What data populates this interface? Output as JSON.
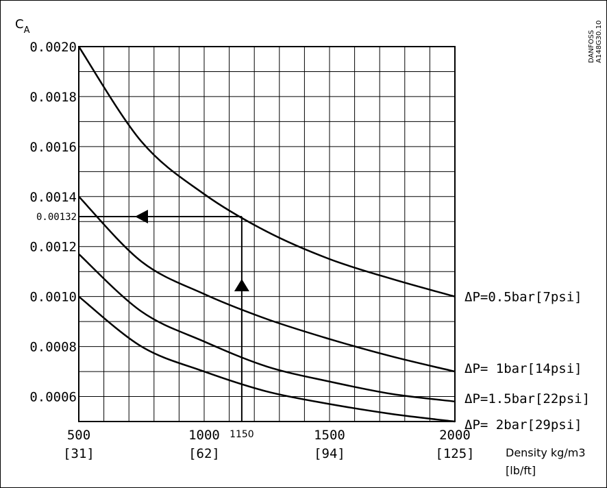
{
  "chart_data": {
    "type": "line",
    "ylabel_main": "C",
    "ylabel_sub": "A",
    "x": [
      500,
      750,
      1000,
      1250,
      1500,
      1750,
      2000
    ],
    "xlim": [
      500,
      2000
    ],
    "ylim": [
      0.0005,
      0.002
    ],
    "grid": true,
    "y_ticks": [
      "0.0006",
      "0.0008",
      "0.0010",
      "0.0012",
      "0.0014",
      "0.0016",
      "0.0018",
      "0.0020"
    ],
    "x_ticks": [
      {
        "value": 500,
        "label": "500",
        "imperial": "[31]"
      },
      {
        "value": 1000,
        "label": "1000",
        "imperial": "[62]"
      },
      {
        "value": 1500,
        "label": "1500",
        "imperial": "[94]"
      },
      {
        "value": 2000,
        "label": "2000",
        "imperial": "[125]"
      }
    ],
    "series": [
      {
        "name": "ΔP=0.5bar[7psi]",
        "values": [
          0.002,
          0.00162,
          0.00141,
          0.00126,
          0.00115,
          0.00107,
          0.001
        ]
      },
      {
        "name": "ΔP=  1bar[14psi]",
        "values": [
          0.0014,
          0.00114,
          0.00101,
          0.00091,
          0.00083,
          0.00076,
          0.0007
        ]
      },
      {
        "name": "ΔP=1.5bar[22psi]",
        "values": [
          0.00117,
          0.00094,
          0.00082,
          0.00072,
          0.00066,
          0.00061,
          0.00058
        ]
      },
      {
        "name": "ΔP=  2bar[29psi]",
        "values": [
          0.001,
          0.0008,
          0.0007,
          0.00062,
          0.00057,
          0.00053,
          0.0005
        ]
      }
    ],
    "annotation": {
      "x_value": 1150,
      "x_label": "1150",
      "y_value": 0.00132,
      "y_label": "0.00132"
    },
    "xlabel_line1": "Density kg/m3",
    "xlabel_line2": "[lb/ft]",
    "watermark_line1": "DANFOSS",
    "watermark_line2": "A148G30.10"
  }
}
